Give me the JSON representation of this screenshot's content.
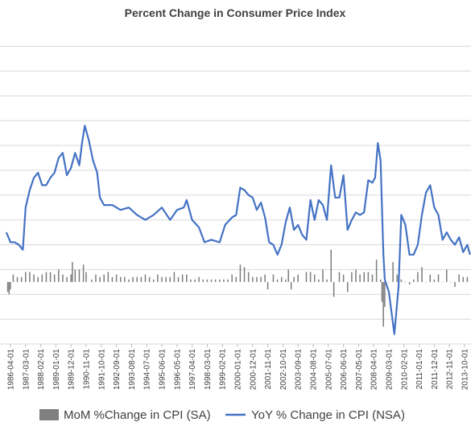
{
  "chart_data": {
    "type": "bar+line",
    "title": "Percent Change in Consumer Price Index",
    "xlabel": "",
    "ylabel": "",
    "ylim": [
      -2.5,
      10
    ],
    "grid": true,
    "legend_position": "bottom",
    "colors": {
      "bars": "#7f7f7f",
      "line": "#4472c4",
      "grid": "#d9d9d9",
      "text": "#404040"
    },
    "x_tick_labels": [
      "1986-04-01",
      "1987-03-01",
      "1988-02-01",
      "1989-01-01",
      "1989-12-01",
      "1990-11-01",
      "1991-10-01",
      "1992-09-01",
      "1993-08-01",
      "1994-07-01",
      "1995-06-01",
      "1996-05-01",
      "1997-04-01",
      "1998-03-01",
      "1999-02-01",
      "2000-01-01",
      "2000-12-01",
      "2001-11-01",
      "2002-10-01",
      "2003-09-01",
      "2004-08-01",
      "2005-07-01",
      "2006-06-01",
      "2007-05-01",
      "2008-04-01",
      "2009-03-01",
      "2010-02-01",
      "2011-01-01",
      "2011-12-01",
      "2012-11-01",
      "2013-10-01"
    ],
    "series": [
      {
        "name": "YoY % Change in CPI (NSA)",
        "kind": "line",
        "points": [
          [
            "1986-01",
            2.0
          ],
          [
            "1986-04",
            1.6
          ],
          [
            "1986-07",
            1.6
          ],
          [
            "1986-10",
            1.5
          ],
          [
            "1987-01",
            1.3
          ],
          [
            "1987-03",
            3.0
          ],
          [
            "1987-06",
            3.7
          ],
          [
            "1987-09",
            4.2
          ],
          [
            "1987-12",
            4.4
          ],
          [
            "1988-03",
            3.9
          ],
          [
            "1988-06",
            3.9
          ],
          [
            "1988-09",
            4.2
          ],
          [
            "1988-12",
            4.4
          ],
          [
            "1989-03",
            5.0
          ],
          [
            "1989-06",
            5.2
          ],
          [
            "1989-09",
            4.3
          ],
          [
            "1989-12",
            4.6
          ],
          [
            "1990-03",
            5.2
          ],
          [
            "1990-06",
            4.7
          ],
          [
            "1990-08",
            5.6
          ],
          [
            "1990-10",
            6.3
          ],
          [
            "1991-01",
            5.7
          ],
          [
            "1991-04",
            4.9
          ],
          [
            "1991-07",
            4.4
          ],
          [
            "1991-09",
            3.4
          ],
          [
            "1991-12",
            3.1
          ],
          [
            "1992-06",
            3.1
          ],
          [
            "1992-12",
            2.9
          ],
          [
            "1993-06",
            3.0
          ],
          [
            "1993-12",
            2.7
          ],
          [
            "1994-06",
            2.5
          ],
          [
            "1994-12",
            2.7
          ],
          [
            "1995-06",
            3.0
          ],
          [
            "1995-12",
            2.5
          ],
          [
            "1996-05",
            2.9
          ],
          [
            "1996-10",
            3.0
          ],
          [
            "1996-12",
            3.3
          ],
          [
            "1997-04",
            2.5
          ],
          [
            "1997-09",
            2.2
          ],
          [
            "1998-01",
            1.6
          ],
          [
            "1998-06",
            1.7
          ],
          [
            "1998-12",
            1.6
          ],
          [
            "1999-04",
            2.3
          ],
          [
            "1999-09",
            2.6
          ],
          [
            "1999-12",
            2.7
          ],
          [
            "2000-03",
            3.8
          ],
          [
            "2000-06",
            3.7
          ],
          [
            "2000-09",
            3.5
          ],
          [
            "2000-12",
            3.4
          ],
          [
            "2001-03",
            2.9
          ],
          [
            "2001-06",
            3.2
          ],
          [
            "2001-09",
            2.6
          ],
          [
            "2001-12",
            1.6
          ],
          [
            "2002-03",
            1.5
          ],
          [
            "2002-06",
            1.1
          ],
          [
            "2002-09",
            1.5
          ],
          [
            "2002-12",
            2.4
          ],
          [
            "2003-03",
            3.0
          ],
          [
            "2003-06",
            2.1
          ],
          [
            "2003-09",
            2.3
          ],
          [
            "2003-12",
            1.9
          ],
          [
            "2004-03",
            1.7
          ],
          [
            "2004-06",
            3.3
          ],
          [
            "2004-09",
            2.5
          ],
          [
            "2004-12",
            3.3
          ],
          [
            "2005-03",
            3.1
          ],
          [
            "2005-06",
            2.5
          ],
          [
            "2005-09",
            4.7
          ],
          [
            "2005-12",
            3.4
          ],
          [
            "2006-03",
            3.4
          ],
          [
            "2006-06",
            4.3
          ],
          [
            "2006-09",
            2.1
          ],
          [
            "2006-12",
            2.5
          ],
          [
            "2007-03",
            2.8
          ],
          [
            "2007-06",
            2.7
          ],
          [
            "2007-09",
            2.8
          ],
          [
            "2007-12",
            4.1
          ],
          [
            "2008-03",
            4.0
          ],
          [
            "2008-05",
            4.2
          ],
          [
            "2008-07",
            5.6
          ],
          [
            "2008-09",
            4.9
          ],
          [
            "2008-11",
            1.1
          ],
          [
            "2008-12",
            0.1
          ],
          [
            "2009-03",
            -0.4
          ],
          [
            "2009-07",
            -2.1
          ],
          [
            "2009-10",
            -0.2
          ],
          [
            "2009-12",
            2.7
          ],
          [
            "2010-03",
            2.3
          ],
          [
            "2010-06",
            1.1
          ],
          [
            "2010-09",
            1.1
          ],
          [
            "2010-12",
            1.5
          ],
          [
            "2011-03",
            2.7
          ],
          [
            "2011-06",
            3.6
          ],
          [
            "2011-09",
            3.9
          ],
          [
            "2011-12",
            3.0
          ],
          [
            "2012-03",
            2.7
          ],
          [
            "2012-06",
            1.7
          ],
          [
            "2012-09",
            2.0
          ],
          [
            "2012-12",
            1.7
          ],
          [
            "2013-03",
            1.5
          ],
          [
            "2013-06",
            1.8
          ],
          [
            "2013-09",
            1.2
          ],
          [
            "2013-12",
            1.5
          ],
          [
            "2014-02",
            1.1
          ]
        ]
      },
      {
        "name": "MoM %Change in CPI (SA)",
        "kind": "bar",
        "points": [
          [
            "1986-02",
            -0.4
          ],
          [
            "1986-03",
            -0.5
          ],
          [
            "1986-04",
            -0.3
          ],
          [
            "1986-06",
            0.3
          ],
          [
            "1986-09",
            0.2
          ],
          [
            "1986-12",
            0.2
          ],
          [
            "1987-03",
            0.4
          ],
          [
            "1987-06",
            0.4
          ],
          [
            "1987-09",
            0.3
          ],
          [
            "1987-12",
            0.2
          ],
          [
            "1988-03",
            0.3
          ],
          [
            "1988-06",
            0.4
          ],
          [
            "1988-09",
            0.4
          ],
          [
            "1988-12",
            0.3
          ],
          [
            "1989-03",
            0.5
          ],
          [
            "1989-06",
            0.3
          ],
          [
            "1989-09",
            0.2
          ],
          [
            "1989-12",
            0.3
          ],
          [
            "1990-01",
            0.8
          ],
          [
            "1990-03",
            0.5
          ],
          [
            "1990-06",
            0.5
          ],
          [
            "1990-09",
            0.7
          ],
          [
            "1990-11",
            0.4
          ],
          [
            "1991-03",
            0.1
          ],
          [
            "1991-06",
            0.3
          ],
          [
            "1991-09",
            0.2
          ],
          [
            "1991-12",
            0.3
          ],
          [
            "1992-03",
            0.4
          ],
          [
            "1992-06",
            0.2
          ],
          [
            "1992-09",
            0.3
          ],
          [
            "1992-12",
            0.2
          ],
          [
            "1993-03",
            0.2
          ],
          [
            "1993-06",
            0.1
          ],
          [
            "1993-09",
            0.2
          ],
          [
            "1993-12",
            0.2
          ],
          [
            "1994-03",
            0.2
          ],
          [
            "1994-06",
            0.3
          ],
          [
            "1994-09",
            0.2
          ],
          [
            "1994-12",
            0.1
          ],
          [
            "1995-03",
            0.3
          ],
          [
            "1995-06",
            0.2
          ],
          [
            "1995-09",
            0.2
          ],
          [
            "1995-12",
            0.2
          ],
          [
            "1996-03",
            0.4
          ],
          [
            "1996-06",
            0.2
          ],
          [
            "1996-09",
            0.3
          ],
          [
            "1996-12",
            0.3
          ],
          [
            "1997-03",
            0.1
          ],
          [
            "1997-06",
            0.1
          ],
          [
            "1997-09",
            0.2
          ],
          [
            "1997-12",
            0.1
          ],
          [
            "1998-03",
            0.1
          ],
          [
            "1998-06",
            0.1
          ],
          [
            "1998-09",
            0.1
          ],
          [
            "1998-12",
            0.1
          ],
          [
            "1999-03",
            0.1
          ],
          [
            "1999-06",
            0.1
          ],
          [
            "1999-09",
            0.3
          ],
          [
            "1999-12",
            0.2
          ],
          [
            "2000-03",
            0.7
          ],
          [
            "2000-06",
            0.6
          ],
          [
            "2000-09",
            0.4
          ],
          [
            "2000-12",
            0.2
          ],
          [
            "2001-03",
            0.2
          ],
          [
            "2001-06",
            0.2
          ],
          [
            "2001-09",
            0.3
          ],
          [
            "2001-11",
            -0.3
          ],
          [
            "2002-03",
            0.3
          ],
          [
            "2002-06",
            0.1
          ],
          [
            "2002-09",
            0.2
          ],
          [
            "2002-12",
            0.1
          ],
          [
            "2003-02",
            0.5
          ],
          [
            "2003-04",
            -0.3
          ],
          [
            "2003-06",
            0.2
          ],
          [
            "2003-09",
            0.3
          ],
          [
            "2004-03",
            0.4
          ],
          [
            "2004-06",
            0.4
          ],
          [
            "2004-09",
            0.3
          ],
          [
            "2004-12",
            0.1
          ],
          [
            "2005-03",
            0.5
          ],
          [
            "2005-06",
            0.1
          ],
          [
            "2005-09",
            1.3
          ],
          [
            "2005-11",
            -0.6
          ],
          [
            "2006-03",
            0.4
          ],
          [
            "2006-06",
            0.3
          ],
          [
            "2006-09",
            -0.4
          ],
          [
            "2006-12",
            0.4
          ],
          [
            "2007-03",
            0.5
          ],
          [
            "2007-06",
            0.3
          ],
          [
            "2007-09",
            0.4
          ],
          [
            "2007-12",
            0.4
          ],
          [
            "2008-03",
            0.3
          ],
          [
            "2008-06",
            0.9
          ],
          [
            "2008-09",
            0.1
          ],
          [
            "2008-10",
            -0.8
          ],
          [
            "2008-11",
            -1.8
          ],
          [
            "2008-12",
            -1.0
          ],
          [
            "2009-03",
            0.0
          ],
          [
            "2009-06",
            0.8
          ],
          [
            "2009-09",
            0.3
          ],
          [
            "2009-12",
            0.1
          ],
          [
            "2010-03",
            0.0
          ],
          [
            "2010-06",
            -0.1
          ],
          [
            "2010-09",
            0.1
          ],
          [
            "2010-12",
            0.4
          ],
          [
            "2011-03",
            0.6
          ],
          [
            "2011-06",
            0.0
          ],
          [
            "2011-09",
            0.3
          ],
          [
            "2011-12",
            0.1
          ],
          [
            "2012-03",
            0.3
          ],
          [
            "2012-06",
            0.0
          ],
          [
            "2012-09",
            0.5
          ],
          [
            "2012-12",
            0.0
          ],
          [
            "2013-03",
            -0.2
          ],
          [
            "2013-06",
            0.3
          ],
          [
            "2013-09",
            0.2
          ],
          [
            "2013-12",
            0.2
          ]
        ]
      }
    ]
  }
}
